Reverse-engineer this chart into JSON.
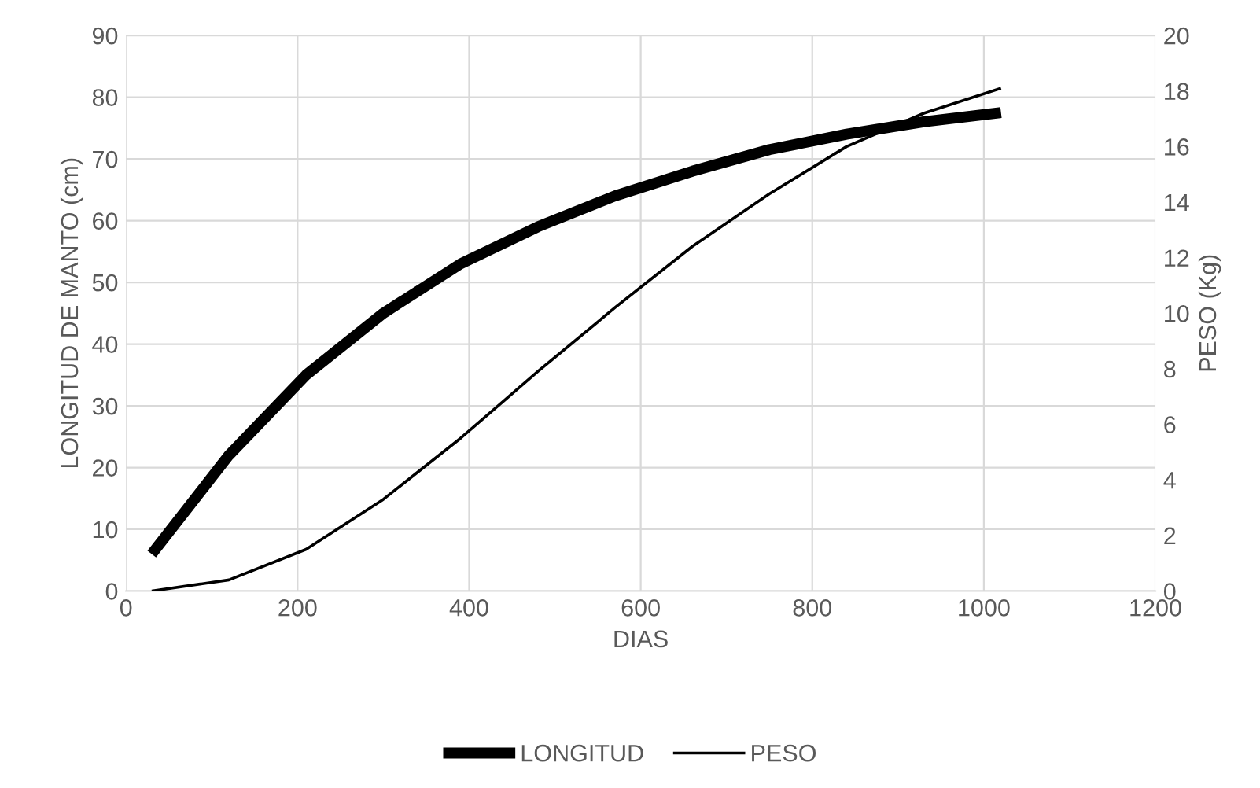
{
  "chart_data": {
    "type": "line",
    "xlabel": "DIAS",
    "ylabel": "LONGITUD DE MANTO (cm)",
    "y2label": "PESO (Kg)",
    "x": [
      30,
      120,
      210,
      300,
      390,
      480,
      570,
      660,
      750,
      840,
      930,
      1020
    ],
    "series": [
      {
        "name": "LONGITUD",
        "color": "#000000",
        "values": [
          6,
          22,
          35,
          45,
          53,
          59,
          64,
          68,
          71.5,
          74,
          76,
          77.5
        ]
      },
      {
        "name": "PESO",
        "color": "#000000",
        "axis": "y2",
        "values": [
          0,
          0.4,
          1.5,
          3.3,
          5.5,
          7.9,
          10.2,
          12.4,
          14.3,
          16,
          17.2,
          18.1
        ]
      }
    ],
    "xlim": [
      0,
      1200
    ],
    "xticks": [
      0,
      200,
      400,
      600,
      800,
      1000,
      1200
    ],
    "ylim": [
      0,
      90
    ],
    "yticks": [
      0,
      10,
      20,
      30,
      40,
      50,
      60,
      70,
      80,
      90
    ],
    "y2lim": [
      0,
      20
    ],
    "y2ticks": [
      0,
      2,
      4,
      6,
      8,
      10,
      12,
      14,
      16,
      18,
      20
    ],
    "grid": true,
    "legend": "bottom",
    "marker": "none",
    "line_style": "solid"
  }
}
